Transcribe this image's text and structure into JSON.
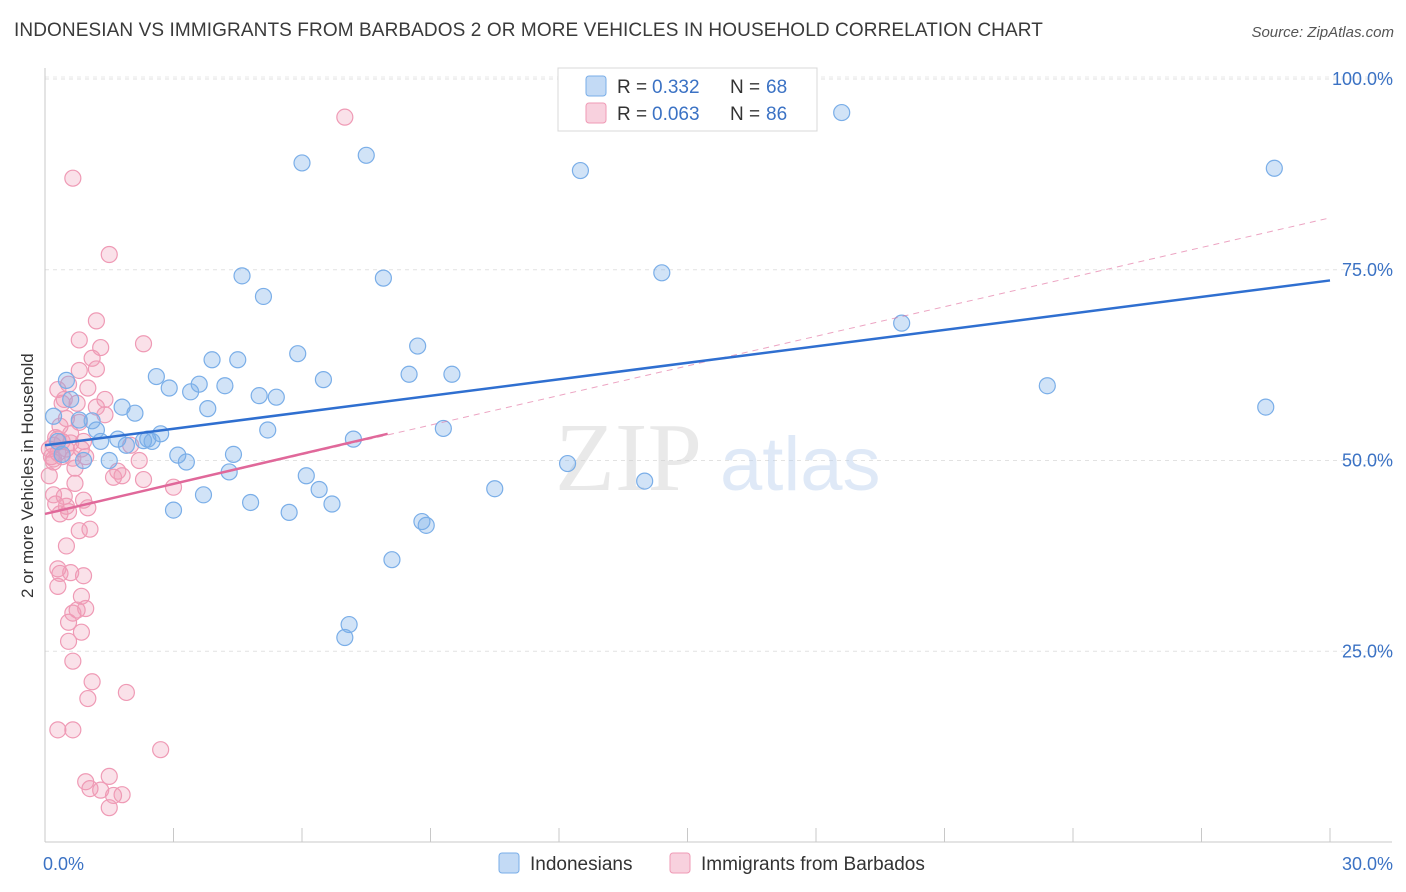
{
  "title": "INDONESIAN VS IMMIGRANTS FROM BARBADOS 2 OR MORE VEHICLES IN HOUSEHOLD CORRELATION CHART",
  "source": "Source: ZipAtlas.com",
  "watermark": {
    "zip": "ZIP",
    "atlas": "atlas"
  },
  "colors": {
    "blue": "#7aaee8",
    "blue_fill": "rgba(122,174,232,0.35)",
    "blue_line": "#2f6fd0",
    "pink": "#ef9ab5",
    "pink_fill": "rgba(239,154,181,0.30)",
    "pink_line": "#e0689a",
    "accent_text": "#3b72c4"
  },
  "legend": {
    "rows": [
      {
        "r_label": "R =",
        "r_value": "0.332",
        "n_label": "N =",
        "n_value": "68"
      },
      {
        "r_label": "R =",
        "r_value": "0.063",
        "n_label": "N =",
        "n_value": "86"
      }
    ]
  },
  "chart_data": {
    "type": "scatter",
    "title": "INDONESIAN VS IMMIGRANTS FROM BARBADOS 2 OR MORE VEHICLES IN HOUSEHOLD CORRELATION CHART",
    "xlabel": "",
    "ylabel": "2 or more Vehicles in Household",
    "xlim": [
      0,
      30
    ],
    "ylim": [
      0,
      103
    ],
    "x_tick_labels": {
      "left": "0.0%",
      "right": "30.0%"
    },
    "y_ticks": [
      25,
      50,
      75,
      100
    ],
    "y_tick_labels": [
      "25.0%",
      "50.0%",
      "75.0%",
      "100.0%"
    ],
    "grid": true,
    "legend_position": "top-center",
    "series": [
      {
        "name": "Indonesians",
        "R": 0.332,
        "N": 68,
        "trend": {
          "x0": 0,
          "y0": 52,
          "x1": 30,
          "y1": 73.6
        },
        "points": [
          [
            0.2,
            55.8
          ],
          [
            0.5,
            60.5
          ],
          [
            0.6,
            58
          ],
          [
            0.8,
            55.3
          ],
          [
            0.9,
            50
          ],
          [
            1.1,
            55.2
          ],
          [
            1.2,
            54
          ],
          [
            1.3,
            52.5
          ],
          [
            1.5,
            50
          ],
          [
            1.7,
            52.8
          ],
          [
            1.8,
            57
          ],
          [
            1.9,
            52
          ],
          [
            2.1,
            56.2
          ],
          [
            2.3,
            52.6
          ],
          [
            2.4,
            52.8
          ],
          [
            2.5,
            52.5
          ],
          [
            2.6,
            61
          ],
          [
            2.7,
            53.5
          ],
          [
            2.9,
            59.5
          ],
          [
            3.0,
            43.5
          ],
          [
            3.1,
            50.7
          ],
          [
            3.3,
            49.8
          ],
          [
            3.4,
            59
          ],
          [
            3.6,
            60
          ],
          [
            3.7,
            45.5
          ],
          [
            3.8,
            56.8
          ],
          [
            3.9,
            63.2
          ],
          [
            4.2,
            59.8
          ],
          [
            4.3,
            48.5
          ],
          [
            4.4,
            50.8
          ],
          [
            4.5,
            63.2
          ],
          [
            4.6,
            74.2
          ],
          [
            4.8,
            44.5
          ],
          [
            5.0,
            58.5
          ],
          [
            5.1,
            71.5
          ],
          [
            5.2,
            54
          ],
          [
            5.4,
            58.3
          ],
          [
            5.7,
            43.2
          ],
          [
            5.9,
            64
          ],
          [
            6.0,
            89
          ],
          [
            6.1,
            48
          ],
          [
            6.4,
            46.2
          ],
          [
            6.5,
            60.6
          ],
          [
            6.7,
            44.3
          ],
          [
            7.0,
            26.8
          ],
          [
            7.1,
            28.5
          ],
          [
            7.2,
            52.8
          ],
          [
            7.5,
            90
          ],
          [
            7.9,
            73.9
          ],
          [
            8.1,
            37
          ],
          [
            8.5,
            61.3
          ],
          [
            8.7,
            65
          ],
          [
            8.8,
            42
          ],
          [
            8.9,
            41.5
          ],
          [
            9.3,
            54.2
          ],
          [
            9.5,
            61.3
          ],
          [
            10.5,
            46.3
          ],
          [
            12.2,
            49.6
          ],
          [
            12.5,
            88
          ],
          [
            14.0,
            47.3
          ],
          [
            14.4,
            74.6
          ],
          [
            18.6,
            95.6
          ],
          [
            20.0,
            68
          ],
          [
            23.4,
            59.8
          ],
          [
            28.5,
            57
          ],
          [
            28.7,
            88.3
          ],
          [
            0.3,
            52.5
          ],
          [
            0.4,
            50.8
          ]
        ]
      },
      {
        "name": "Immigrants from Barbados",
        "R": 0.063,
        "N": 86,
        "trend": {
          "x0": 0,
          "y0": 43,
          "x1": 8,
          "y1": 53.5
        },
        "trend_extended": {
          "x0": 0,
          "y0": 43,
          "x1": 30,
          "y1": 81.8
        },
        "points": [
          [
            0.1,
            48
          ],
          [
            0.1,
            51.5
          ],
          [
            0.15,
            50.5
          ],
          [
            0.2,
            52
          ],
          [
            0.2,
            49.8
          ],
          [
            0.25,
            53
          ],
          [
            0.3,
            51
          ],
          [
            0.3,
            59.3
          ],
          [
            0.35,
            54.5
          ],
          [
            0.4,
            50.5
          ],
          [
            0.4,
            52.5
          ],
          [
            0.45,
            58
          ],
          [
            0.5,
            55.5
          ],
          [
            0.5,
            51.5
          ],
          [
            0.55,
            60
          ],
          [
            0.6,
            53.5
          ],
          [
            0.6,
            52.3
          ],
          [
            0.65,
            50.3
          ],
          [
            0.7,
            49
          ],
          [
            0.75,
            57.5
          ],
          [
            0.8,
            55
          ],
          [
            0.85,
            51.5
          ],
          [
            0.9,
            52.5
          ],
          [
            0.95,
            50.5
          ],
          [
            0.2,
            45.5
          ],
          [
            0.25,
            44.3
          ],
          [
            0.35,
            43
          ],
          [
            0.45,
            45.3
          ],
          [
            0.5,
            44
          ],
          [
            0.55,
            43.3
          ],
          [
            0.7,
            47
          ],
          [
            0.8,
            40.8
          ],
          [
            0.9,
            44.8
          ],
          [
            1.0,
            43.8
          ],
          [
            1.05,
            41
          ],
          [
            0.5,
            38.8
          ],
          [
            0.3,
            35.8
          ],
          [
            0.35,
            35.2
          ],
          [
            0.6,
            35.3
          ],
          [
            0.9,
            34.9
          ],
          [
            0.3,
            33.5
          ],
          [
            0.85,
            32.2
          ],
          [
            0.65,
            30
          ],
          [
            0.75,
            30.4
          ],
          [
            0.95,
            30.6
          ],
          [
            0.55,
            28.8
          ],
          [
            0.85,
            27.5
          ],
          [
            0.55,
            26.3
          ],
          [
            0.65,
            23.7
          ],
          [
            1.1,
            21
          ],
          [
            1.0,
            18.8
          ],
          [
            1.9,
            19.6
          ],
          [
            0.3,
            14.7
          ],
          [
            0.65,
            14.7
          ],
          [
            2.7,
            12.1
          ],
          [
            0.95,
            7.9
          ],
          [
            1.05,
            7
          ],
          [
            1.3,
            6.8
          ],
          [
            1.5,
            8.6
          ],
          [
            1.6,
            6.1
          ],
          [
            1.8,
            6.2
          ],
          [
            1.5,
            4.5
          ],
          [
            0.65,
            87
          ],
          [
            1.5,
            77
          ],
          [
            7.0,
            95
          ],
          [
            1.2,
            68.3
          ],
          [
            0.8,
            65.8
          ],
          [
            1.3,
            64.8
          ],
          [
            1.1,
            63.4
          ],
          [
            2.3,
            65.3
          ],
          [
            1.2,
            62
          ],
          [
            0.8,
            61.8
          ],
          [
            1.0,
            59.5
          ],
          [
            1.4,
            58
          ],
          [
            1.2,
            57
          ],
          [
            2.0,
            52
          ],
          [
            2.2,
            50
          ],
          [
            1.7,
            48.6
          ],
          [
            1.6,
            47.8
          ],
          [
            2.3,
            47.5
          ],
          [
            3.0,
            46.5
          ],
          [
            1.8,
            48
          ],
          [
            0.4,
            57.5
          ],
          [
            1.4,
            56
          ],
          [
            0.3,
            52.8
          ],
          [
            0.2,
            50.2
          ]
        ]
      }
    ]
  }
}
